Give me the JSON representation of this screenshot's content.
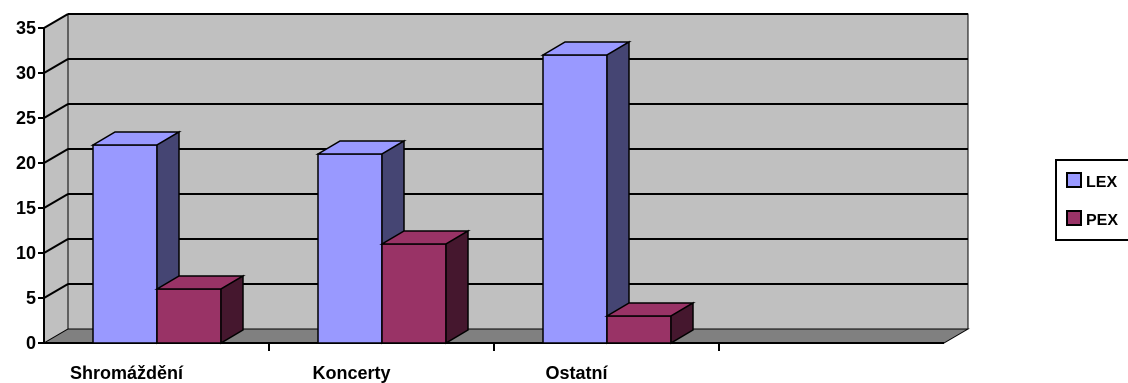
{
  "chart_data": {
    "type": "bar",
    "title": "",
    "xlabel": "",
    "ylabel": "",
    "categories": [
      "Shromáždění",
      "Koncerty",
      "Ostatní"
    ],
    "series": [
      {
        "name": "LEX",
        "values": [
          22,
          21,
          32
        ],
        "color": "#9999ff"
      },
      {
        "name": "PEX",
        "values": [
          6,
          11,
          3
        ],
        "color": "#993366"
      }
    ],
    "ylim": [
      0,
      35
    ],
    "yticks": [
      0,
      5,
      10,
      15,
      20,
      25,
      30,
      35
    ],
    "grid": true,
    "legend_position": "right",
    "style": "3d-clustered-column",
    "wall_color": "#c0c0c0",
    "floor_color": "#808080"
  }
}
